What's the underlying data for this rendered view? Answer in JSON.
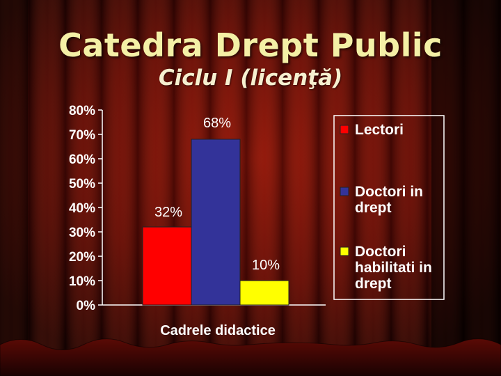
{
  "slide": {
    "title": "Catedra Drept Public",
    "subtitle": "Ciclu I (licenţă)"
  },
  "chart_data": {
    "type": "bar",
    "categories": [
      "Lectori",
      "Doctori in drept",
      "Doctori habilitati in drept"
    ],
    "values": [
      32,
      68,
      10
    ],
    "data_labels": [
      "32%",
      "68%",
      "10%"
    ],
    "xlabel": "Cadrele didactice",
    "ylabel": "",
    "ylim": [
      0,
      80
    ],
    "yticks": [
      "0%",
      "10%",
      "20%",
      "30%",
      "40%",
      "50%",
      "60%",
      "70%",
      "80%"
    ],
    "colors": [
      "#ff0000",
      "#333399",
      "#ffff00"
    ],
    "legend": {
      "placement": "right",
      "entries": [
        {
          "label_lines": [
            "Lectori"
          ],
          "color": "#ff0000"
        },
        {
          "label_lines": [
            "Doctori in",
            "drept"
          ],
          "color": "#333399"
        },
        {
          "label_lines": [
            "Doctori",
            "habilitati in",
            "drept"
          ],
          "color": "#ffff00"
        }
      ]
    },
    "grid": false
  }
}
